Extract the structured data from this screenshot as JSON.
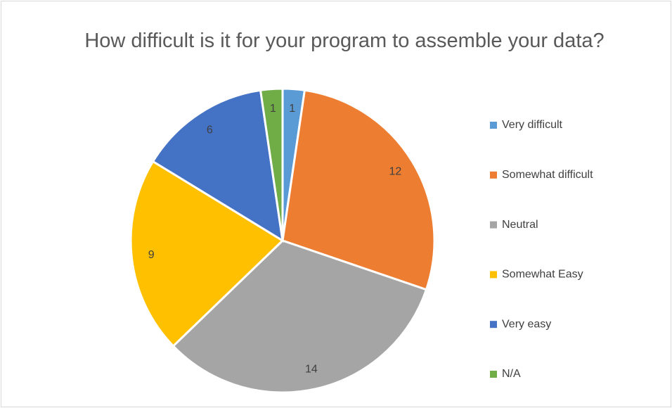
{
  "chart_data": {
    "type": "pie",
    "title": "How difficult is it for your program to assemble your data?",
    "categories": [
      "Very difficult",
      "Somewhat difficult",
      "Neutral",
      "Somewhat Easy",
      "Very easy",
      "N/A"
    ],
    "values": [
      1,
      12,
      14,
      9,
      6,
      1
    ],
    "colors": [
      "#5b9bd5",
      "#ed7d31",
      "#a5a5a5",
      "#ffc000",
      "#4472c4",
      "#70ad47"
    ],
    "legend": "right"
  }
}
